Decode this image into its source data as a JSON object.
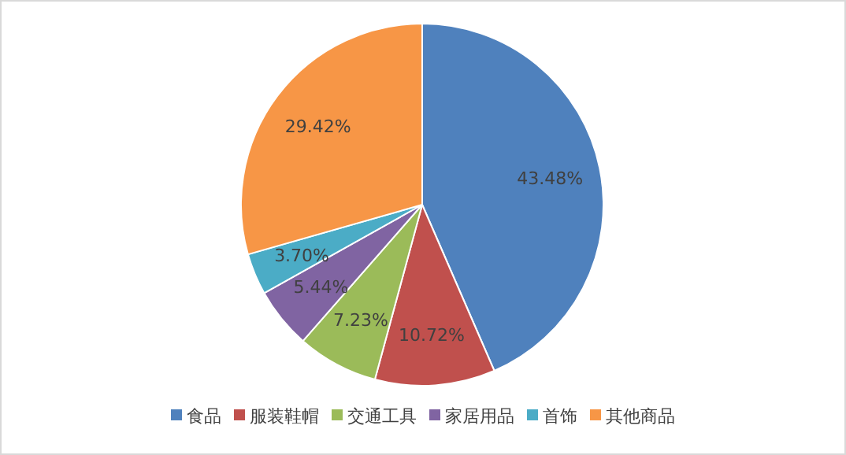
{
  "chart_data": {
    "type": "pie",
    "categories": [
      "食品",
      "服装鞋帽",
      "交通工具",
      "家居用品",
      "首饰",
      "其他商品"
    ],
    "values": [
      43.48,
      10.72,
      7.23,
      5.44,
      3.7,
      29.42
    ],
    "value_labels": [
      "43.48%",
      "10.72%",
      "7.23%",
      "5.44%",
      "3.70%",
      "29.42%"
    ],
    "colors": [
      "#4f81bd",
      "#c0504d",
      "#9bbb59",
      "#8064a2",
      "#4bacc6",
      "#f79646"
    ],
    "legend": "bottom"
  }
}
